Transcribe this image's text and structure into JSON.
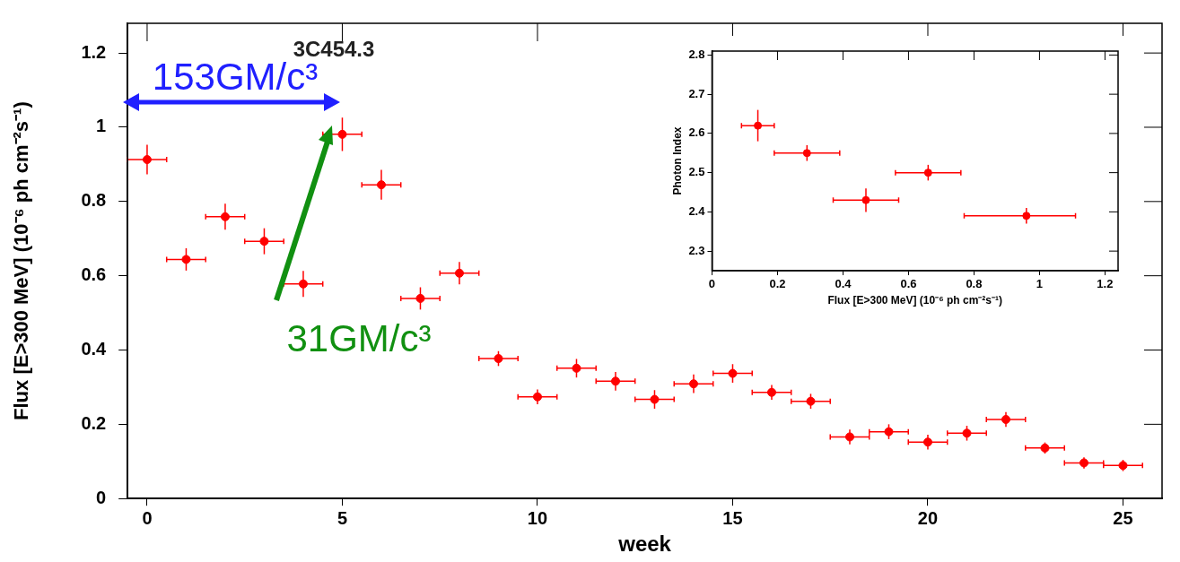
{
  "chart_data": [
    {
      "type": "scatter",
      "title": "3C454.3",
      "xlabel": "week",
      "ylabel": "Flux [E>300 MeV] (10⁻⁶ ph cm⁻²s⁻¹)",
      "x": [
        0,
        1,
        2,
        3,
        4,
        5,
        6,
        7,
        8,
        9,
        10,
        11,
        12,
        13,
        14,
        15,
        16,
        17,
        18,
        19,
        20,
        21,
        22,
        23,
        24,
        25
      ],
      "series": [
        {
          "color": "#ff0000",
          "values": [
            0.913,
            0.644,
            0.759,
            0.693,
            0.578,
            0.981,
            0.845,
            0.539,
            0.607,
            0.377,
            0.274,
            0.351,
            0.316,
            0.267,
            0.309,
            0.337,
            0.286,
            0.262,
            0.166,
            0.18,
            0.152,
            0.176,
            0.213,
            0.136,
            0.096,
            0.089
          ],
          "errors": [
            0.04,
            0.03,
            0.035,
            0.035,
            0.035,
            0.045,
            0.04,
            0.03,
            0.03,
            0.02,
            0.02,
            0.025,
            0.025,
            0.025,
            0.025,
            0.025,
            0.02,
            0.02,
            0.02,
            0.02,
            0.02,
            0.02,
            0.02,
            0.015,
            0.015,
            0.015
          ],
          "xerrors": [
            0.5,
            0.5,
            0.5,
            0.5,
            0.5,
            0.5,
            0.5,
            0.5,
            0.5,
            0.5,
            0.5,
            0.5,
            0.5,
            0.5,
            0.5,
            0.5,
            0.5,
            0.5,
            0.5,
            0.5,
            0.5,
            0.5,
            0.5,
            0.5,
            0.5,
            0.5
          ]
        }
      ],
      "xlim": [
        -0.5,
        26
      ],
      "ylim": [
        0,
        1.28
      ],
      "xticks": [
        0,
        5,
        10,
        15,
        20,
        25
      ],
      "yticks": [
        0,
        0.2,
        0.4,
        0.6,
        0.8,
        1,
        1.2
      ],
      "marker": "circle",
      "legend": false,
      "annotations": [
        "153GM/c³",
        "31GM/c³"
      ]
    },
    {
      "type": "scatter",
      "xlabel": "Flux [E>300 MeV] (10⁻⁶ ph cm⁻²s⁻¹)",
      "ylabel": "Photon Index",
      "x": [
        0.14,
        0.29,
        0.47,
        0.66,
        0.96
      ],
      "series": [
        {
          "color": "#ff0000",
          "values": [
            2.62,
            2.55,
            2.43,
            2.5,
            2.39
          ],
          "errors": [
            0.04,
            0.02,
            0.03,
            0.02,
            0.02
          ],
          "xerrors": [
            0.05,
            0.1,
            0.1,
            0.1,
            [
              0.77,
              1.11
            ]
          ]
        }
      ],
      "xlim": [
        0,
        1.24
      ],
      "ylim": [
        2.25,
        2.81
      ],
      "xticks": [
        0,
        0.2,
        0.4,
        0.6,
        0.8,
        1,
        1.2
      ],
      "yticks": [
        2.3,
        2.4,
        2.5,
        2.6,
        2.7,
        2.8
      ],
      "marker": "circle",
      "legend": false
    }
  ]
}
